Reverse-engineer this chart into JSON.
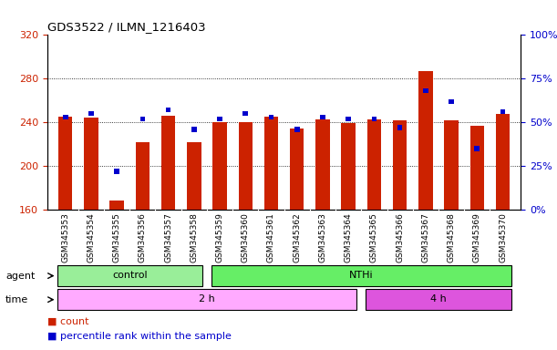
{
  "title": "GDS3522 / ILMN_1216403",
  "samples": [
    "GSM345353",
    "GSM345354",
    "GSM345355",
    "GSM345356",
    "GSM345357",
    "GSM345358",
    "GSM345359",
    "GSM345360",
    "GSM345361",
    "GSM345362",
    "GSM345363",
    "GSM345364",
    "GSM345365",
    "GSM345366",
    "GSM345367",
    "GSM345368",
    "GSM345369",
    "GSM345370"
  ],
  "count_values": [
    245,
    244,
    168,
    222,
    246,
    222,
    240,
    240,
    245,
    234,
    243,
    239,
    243,
    242,
    287,
    242,
    237,
    248
  ],
  "percentile_values": [
    53,
    55,
    22,
    52,
    57,
    46,
    52,
    55,
    53,
    46,
    53,
    52,
    52,
    47,
    68,
    62,
    35,
    56
  ],
  "baseline": 160,
  "ylim_left": [
    160,
    320
  ],
  "ylim_right": [
    0,
    100
  ],
  "yticks_left": [
    160,
    200,
    240,
    280,
    320
  ],
  "yticks_right": [
    0,
    25,
    50,
    75,
    100
  ],
  "bar_color": "#CC2200",
  "percentile_color": "#0000CC",
  "grid_color": "#000000",
  "agent_groups": [
    {
      "label": "control",
      "start": 0,
      "end": 6,
      "color": "#99EE99"
    },
    {
      "label": "NTHi",
      "start": 6,
      "end": 18,
      "color": "#66EE66"
    }
  ],
  "time_groups": [
    {
      "label": "2 h",
      "start": 0,
      "end": 12,
      "color": "#FFAAFF"
    },
    {
      "label": "4 h",
      "start": 12,
      "end": 18,
      "color": "#DD55DD"
    }
  ],
  "legend_items": [
    {
      "label": "count",
      "color": "#CC2200"
    },
    {
      "label": "percentile rank within the sample",
      "color": "#0000CC"
    }
  ],
  "xlabel_bg_color": "#CCCCCC",
  "bg_color": "#FFFFFF",
  "plot_bg_color": "#FFFFFF",
  "agent_label": "agent",
  "time_label": "time"
}
